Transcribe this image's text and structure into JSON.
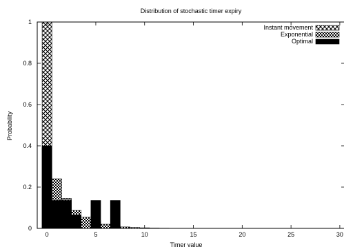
{
  "chart_data": {
    "type": "bar",
    "title": "Distribution of stochastic timer expiry",
    "xlabel": "Timer value",
    "ylabel": "Probability",
    "xlim": [
      -1,
      30.5
    ],
    "ylim": [
      0,
      1
    ],
    "x_ticks": [
      0,
      5,
      10,
      15,
      20,
      25,
      30
    ],
    "y_ticks": [
      0,
      0.2,
      0.4,
      0.6,
      0.8,
      1
    ],
    "y_tick_labels": [
      "0",
      "0.2",
      "0.4",
      "0.6",
      "0.8",
      "1"
    ],
    "legend_position": "top-right",
    "grid": false,
    "series": [
      {
        "name": "Instant movement",
        "pattern": "crosshatch",
        "points": [
          {
            "x": 0,
            "y": 1.0
          }
        ]
      },
      {
        "name": "Exponential",
        "pattern": "checker",
        "points": [
          {
            "x": 0,
            "y": 0.39
          },
          {
            "x": 1,
            "y": 0.24
          },
          {
            "x": 2,
            "y": 0.145
          },
          {
            "x": 3,
            "y": 0.088
          },
          {
            "x": 4,
            "y": 0.054
          },
          {
            "x": 5,
            "y": 0.033
          },
          {
            "x": 6,
            "y": 0.02
          },
          {
            "x": 7,
            "y": 0.012
          },
          {
            "x": 8,
            "y": 0.007
          },
          {
            "x": 9,
            "y": 0.0045
          },
          {
            "x": 10,
            "y": 0.0027
          },
          {
            "x": 11,
            "y": 0.0016
          },
          {
            "x": 12,
            "y": 0.001
          }
        ]
      },
      {
        "name": "Optimal",
        "pattern": "solid",
        "points": [
          {
            "x": 0,
            "y": 0.4
          },
          {
            "x": 1,
            "y": 0.135
          },
          {
            "x": 2,
            "y": 0.135
          },
          {
            "x": 3,
            "y": 0.065
          },
          {
            "x": 5,
            "y": 0.135
          },
          {
            "x": 7,
            "y": 0.135
          }
        ]
      }
    ]
  }
}
